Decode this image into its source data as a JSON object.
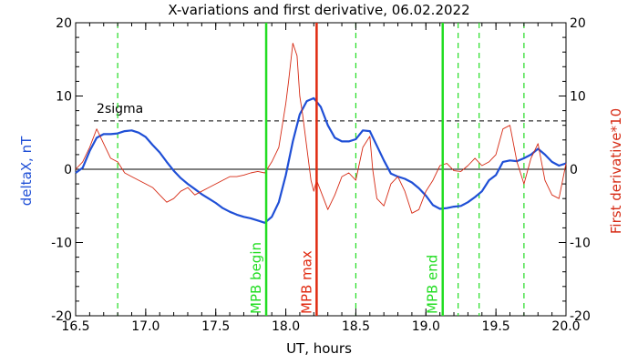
{
  "chart_data": {
    "type": "line",
    "title": "X-variations and first derivative, 06.02.2022",
    "xlabel": "UT, hours",
    "ylabel_left": "deltaX, nT",
    "ylabel_right": "First derivative*10",
    "xlim": [
      16.5,
      20.0
    ],
    "ylim": [
      -20,
      20
    ],
    "x_ticks": [
      "16.5",
      "17.0",
      "17.5",
      "18.0",
      "18.5",
      "19.0",
      "19.5",
      "20.0"
    ],
    "y_ticks_left": [
      "20",
      "10",
      "0",
      "-10",
      "-20"
    ],
    "y_ticks_right": [
      "20",
      "10",
      "0",
      "-10",
      "-20"
    ],
    "colors": {
      "deltaX": "#1f4fd6",
      "derivative": "#d62a14",
      "mpb": "#22dd22",
      "max": "#e02a10",
      "axis": "#000000"
    },
    "sigma": {
      "label": "2sigma",
      "value": 6.6
    },
    "vertical_markers": [
      {
        "label": "MPB begin",
        "x": 17.86,
        "style": "solid",
        "color": "#22dd22"
      },
      {
        "label": "MPB max",
        "x": 18.22,
        "style": "solid",
        "color": "#e02a10"
      },
      {
        "label": "MPB end",
        "x": 19.12,
        "style": "solid",
        "color": "#22dd22"
      }
    ],
    "dashed_markers_x": [
      16.8,
      18.5,
      19.23,
      19.38,
      19.7
    ],
    "series": [
      {
        "name": "deltaX, nT",
        "axis": "left",
        "x": [
          16.5,
          16.55,
          16.6,
          16.65,
          16.7,
          16.75,
          16.8,
          16.85,
          16.9,
          16.95,
          17.0,
          17.05,
          17.1,
          17.15,
          17.2,
          17.25,
          17.3,
          17.35,
          17.4,
          17.45,
          17.5,
          17.55,
          17.6,
          17.65,
          17.7,
          17.75,
          17.8,
          17.85,
          17.9,
          17.95,
          18.0,
          18.05,
          18.1,
          18.15,
          18.2,
          18.25,
          18.3,
          18.35,
          18.4,
          18.45,
          18.5,
          18.55,
          18.6,
          18.65,
          18.7,
          18.75,
          18.8,
          18.85,
          18.9,
          18.95,
          19.0,
          19.05,
          19.1,
          19.15,
          19.2,
          19.25,
          19.3,
          19.35,
          19.4,
          19.45,
          19.5,
          19.55,
          19.6,
          19.65,
          19.7,
          19.75,
          19.8,
          19.85,
          19.9,
          19.95,
          20.0
        ],
        "y": [
          -0.5,
          0.2,
          2.5,
          4.3,
          4.8,
          4.8,
          4.9,
          5.2,
          5.3,
          5.0,
          4.4,
          3.3,
          2.3,
          1.0,
          -0.2,
          -1.2,
          -2.0,
          -2.7,
          -3.4,
          -4.0,
          -4.6,
          -5.3,
          -5.8,
          -6.2,
          -6.5,
          -6.7,
          -7.0,
          -7.3,
          -6.5,
          -4.5,
          -0.8,
          3.8,
          7.5,
          9.3,
          9.7,
          8.5,
          6.0,
          4.3,
          3.8,
          3.8,
          4.1,
          5.3,
          5.2,
          3.2,
          1.2,
          -0.6,
          -1.0,
          -1.3,
          -1.8,
          -2.6,
          -3.6,
          -4.9,
          -5.4,
          -5.3,
          -5.1,
          -5.0,
          -4.5,
          -3.8,
          -3.0,
          -1.5,
          -0.8,
          1.0,
          1.2,
          1.1,
          1.5,
          2.0,
          2.8,
          2.0,
          1.0,
          0.5,
          0.8
        ]
      },
      {
        "name": "First derivative*10",
        "axis": "right",
        "x": [
          16.5,
          16.55,
          16.6,
          16.65,
          16.7,
          16.75,
          16.8,
          16.85,
          16.9,
          16.95,
          17.0,
          17.05,
          17.1,
          17.15,
          17.2,
          17.25,
          17.3,
          17.35,
          17.4,
          17.45,
          17.5,
          17.55,
          17.6,
          17.65,
          17.7,
          17.75,
          17.8,
          17.85,
          17.9,
          17.95,
          18.0,
          18.02,
          18.05,
          18.08,
          18.1,
          18.12,
          18.15,
          18.18,
          18.2,
          18.22,
          18.25,
          18.3,
          18.35,
          18.4,
          18.45,
          18.5,
          18.55,
          18.6,
          18.62,
          18.65,
          18.7,
          18.75,
          18.8,
          18.85,
          18.9,
          18.95,
          19.0,
          19.05,
          19.1,
          19.15,
          19.2,
          19.25,
          19.3,
          19.35,
          19.4,
          19.45,
          19.5,
          19.55,
          19.6,
          19.65,
          19.7,
          19.75,
          19.8,
          19.85,
          19.9,
          19.95,
          20.0
        ],
        "y": [
          0.0,
          1.0,
          3.0,
          5.5,
          3.5,
          1.5,
          1.0,
          -0.5,
          -1.0,
          -1.5,
          -2.0,
          -2.5,
          -3.5,
          -4.5,
          -4.0,
          -3.0,
          -2.5,
          -3.5,
          -3.0,
          -2.5,
          -2.0,
          -1.5,
          -1.0,
          -1.0,
          -0.8,
          -0.5,
          -0.3,
          -0.5,
          1.0,
          3.0,
          9.0,
          12.0,
          17.2,
          15.5,
          10.0,
          7.5,
          3.0,
          -1.5,
          -3.0,
          -1.5,
          -3.0,
          -5.5,
          -3.5,
          -1.0,
          -0.5,
          -1.5,
          3.0,
          4.5,
          0.0,
          -4.0,
          -5.0,
          -2.0,
          -1.0,
          -3.0,
          -6.0,
          -5.5,
          -3.0,
          -1.5,
          0.5,
          0.8,
          -0.2,
          -0.3,
          0.5,
          1.5,
          0.5,
          1.0,
          2.0,
          5.5,
          6.0,
          1.0,
          -2.0,
          1.5,
          3.5,
          -1.5,
          -3.5,
          -4.0,
          0.8
        ]
      }
    ]
  }
}
